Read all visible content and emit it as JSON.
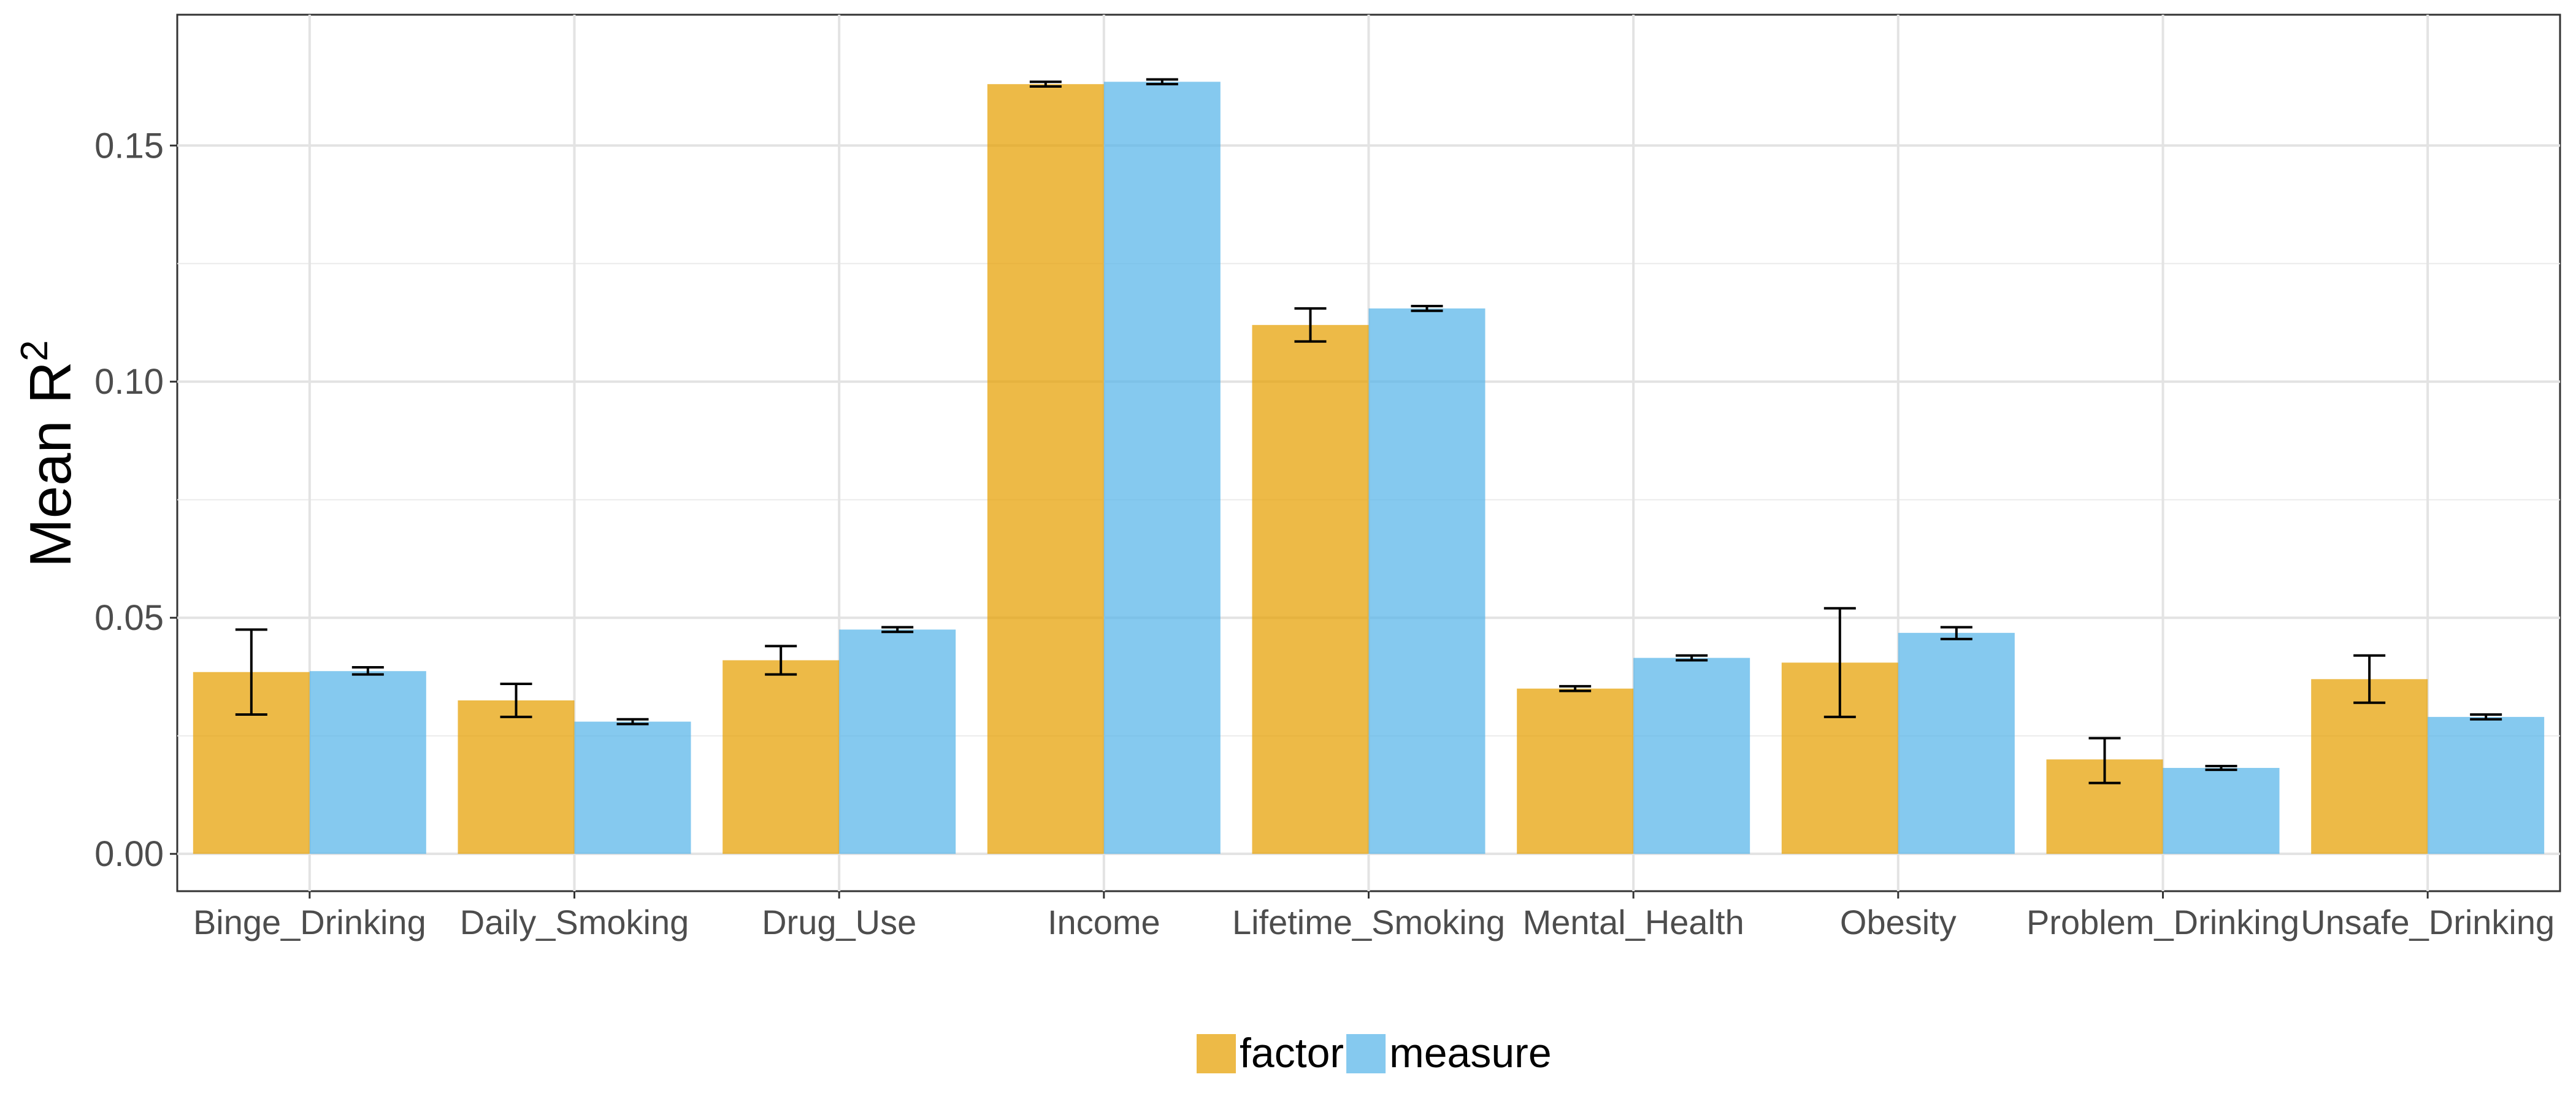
{
  "chart_data": {
    "type": "bar",
    "title": "",
    "xlabel": "",
    "ylabel": "Mean R",
    "ylabel_superscript": "2",
    "ylim": [
      -0.0079,
      0.1777
    ],
    "yticks": [
      0.0,
      0.05,
      0.1,
      0.15
    ],
    "ytick_labels": [
      "0.00",
      "0.05",
      "0.10",
      "0.15"
    ],
    "grid": true,
    "legend_position": "bottom",
    "categories": [
      "Binge_Drinking",
      "Daily_Smoking",
      "Drug_Use",
      "Income",
      "Lifetime_Smoking",
      "Mental_Health",
      "Obesity",
      "Problem_Drinking",
      "Unsafe_Drinking"
    ],
    "series": [
      {
        "name": "factor",
        "color": "#E69F00",
        "values": [
          0.0385,
          0.0325,
          0.041,
          0.163,
          0.112,
          0.035,
          0.0405,
          0.02,
          0.037
        ],
        "error_low": [
          0.0295,
          0.029,
          0.038,
          0.1625,
          0.1085,
          0.0345,
          0.029,
          0.015,
          0.032
        ],
        "error_high": [
          0.0475,
          0.036,
          0.044,
          0.1635,
          0.1155,
          0.0355,
          0.052,
          0.0245,
          0.042
        ]
      },
      {
        "name": "measure",
        "color": "#56B4E9",
        "values": [
          0.0387,
          0.028,
          0.0475,
          0.1635,
          0.1155,
          0.0415,
          0.0468,
          0.0182,
          0.029
        ],
        "error_low": [
          0.038,
          0.0275,
          0.047,
          0.163,
          0.115,
          0.041,
          0.0455,
          0.0178,
          0.0285
        ],
        "error_high": [
          0.0395,
          0.0285,
          0.048,
          0.164,
          0.116,
          0.042,
          0.048,
          0.0186,
          0.0295
        ]
      }
    ]
  }
}
